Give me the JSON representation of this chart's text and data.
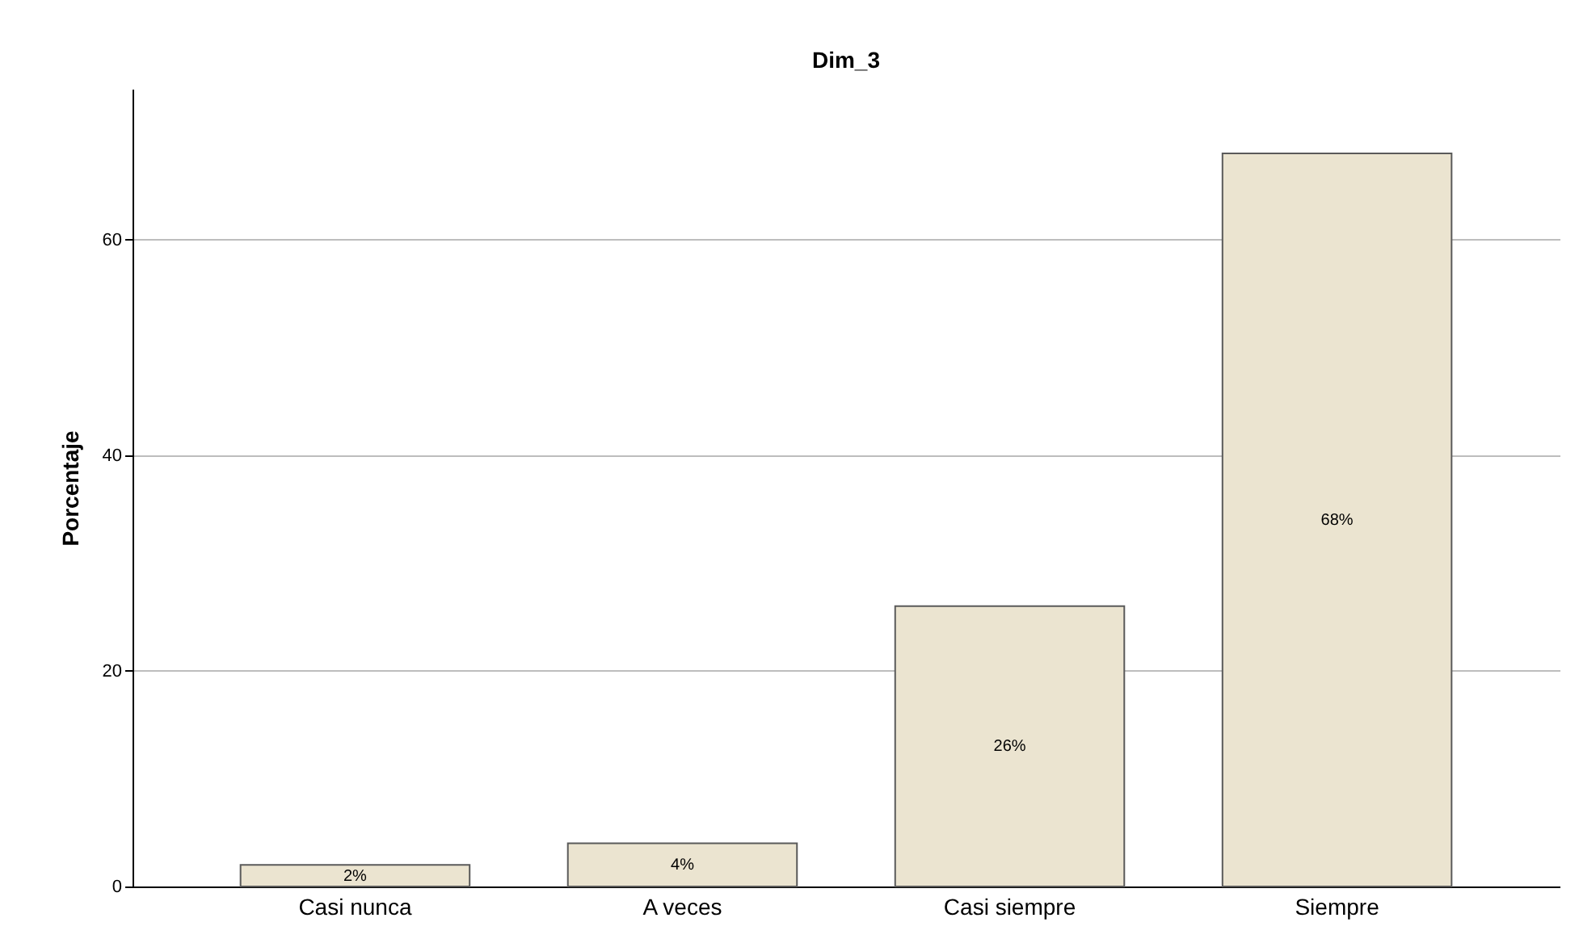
{
  "chart_data": {
    "type": "bar",
    "title": "Dim_3",
    "ylabel": "Porcentaje",
    "categories": [
      "Casi nunca",
      "A veces",
      "Casi siempre",
      "Siempre"
    ],
    "values": [
      2,
      4,
      26,
      68
    ],
    "color": "#ebe4d0",
    "value_labels": [
      "2%",
      "4%",
      "26%",
      "68%"
    ],
    "ylim": [
      0,
      74
    ],
    "yticks": [
      0,
      20,
      40,
      60
    ],
    "grid": "y"
  }
}
